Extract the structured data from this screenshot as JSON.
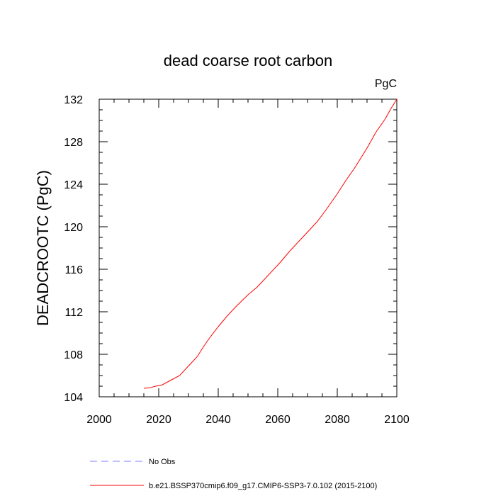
{
  "chart_data": {
    "type": "line",
    "title": "dead coarse root carbon",
    "units": "PgC",
    "ylabel": "DEADCROOTC  (PgC)",
    "xlabel": "",
    "xlim": [
      2000,
      2100
    ],
    "ylim": [
      104,
      132
    ],
    "x_ticks": [
      2000,
      2020,
      2040,
      2060,
      2080,
      2100
    ],
    "y_ticks": [
      104,
      108,
      112,
      116,
      120,
      124,
      128,
      132
    ],
    "grid": false,
    "legend_position": "bottom",
    "series": [
      {
        "name": "No Obs",
        "color": "#8080ff",
        "style": "dashed",
        "x": [],
        "y": []
      },
      {
        "name": "b.e21.BSSP370cmip6.f09_g17.CMIP6-SSP3-7.0.102 (2015-2100)",
        "color": "#ff0000",
        "style": "solid",
        "x": [
          2015,
          2017,
          2019,
          2021,
          2023,
          2025,
          2027,
          2030,
          2033,
          2035,
          2037,
          2040,
          2043,
          2046,
          2050,
          2053,
          2055,
          2058,
          2061,
          2064,
          2067,
          2070,
          2073,
          2076,
          2080,
          2083,
          2086,
          2090,
          2093,
          2096,
          2098,
          2100
        ],
        "y": [
          104.8,
          104.85,
          105.0,
          105.1,
          105.4,
          105.7,
          106.0,
          106.9,
          107.8,
          108.7,
          109.5,
          110.6,
          111.6,
          112.5,
          113.6,
          114.3,
          114.9,
          115.8,
          116.7,
          117.7,
          118.6,
          119.5,
          120.4,
          121.5,
          123.1,
          124.4,
          125.6,
          127.4,
          128.9,
          130.1,
          131.1,
          132.0
        ]
      }
    ]
  }
}
